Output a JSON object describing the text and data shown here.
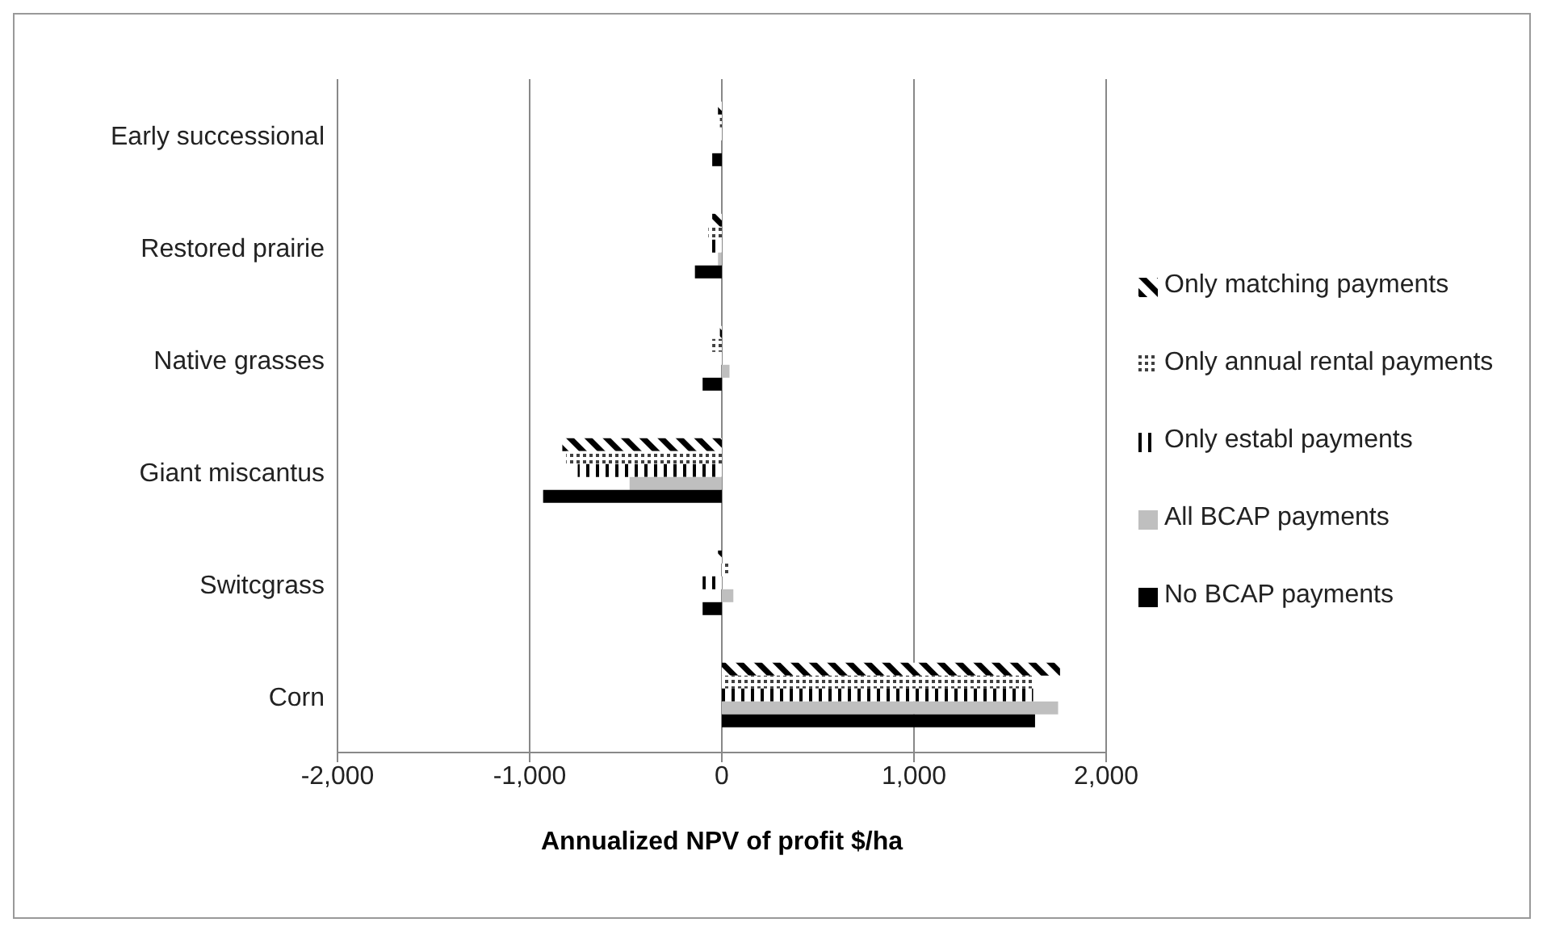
{
  "chart_data": {
    "type": "bar",
    "orientation": "horizontal",
    "categories": [
      "Early successional",
      "Restored prairie",
      "Native grasses",
      "Giant miscantus",
      "Switcgrass",
      "Corn"
    ],
    "series": [
      {
        "name": "Only matching payments",
        "color": "#000000",
        "values": [
          -20,
          -50,
          -10,
          -830,
          -20,
          1760
        ]
      },
      {
        "name": "Only annual rental payments",
        "color": "#404040",
        "values": [
          -10,
          -70,
          -50,
          -810,
          40,
          1620
        ]
      },
      {
        "name": "Only establ payments",
        "color": "#000000",
        "values": [
          -10,
          -80,
          -20,
          -750,
          -100,
          1620
        ]
      },
      {
        "name": "All BCAP payments",
        "color": "#bfbfbf",
        "values": [
          null,
          -20,
          40,
          -480,
          60,
          1750
        ]
      },
      {
        "name": "No BCAP payments",
        "color": "#000000",
        "values": [
          -50,
          -140,
          -100,
          -930,
          -100,
          1630
        ]
      }
    ],
    "xlabel": "Annualized NPV of profit $/ha",
    "xlim": [
      -2000,
      2000
    ],
    "xticks": [
      {
        "value": -2000,
        "label": "-2,000"
      },
      {
        "value": -1000,
        "label": "-1,000"
      },
      0,
      {
        "value": 1000,
        "label": "1,000"
      },
      {
        "value": 2000,
        "label": "2,000"
      }
    ],
    "grid": "x",
    "legend": "right"
  }
}
